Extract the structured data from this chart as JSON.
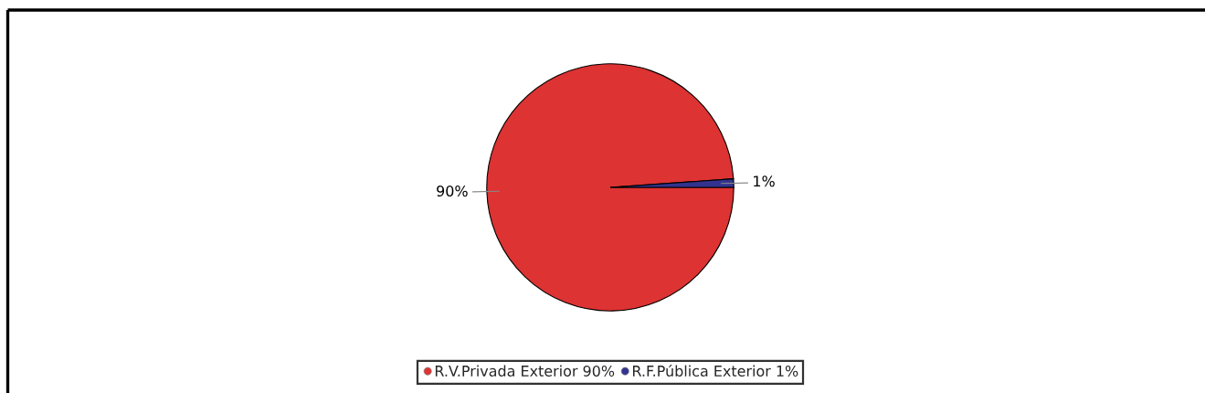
{
  "chart_data": {
    "type": "pie",
    "categories": [
      "R.V.Privada Exterior 90%",
      "R.F.Pública Exterior 1%"
    ],
    "values": [
      90,
      1
    ],
    "colors": [
      "#dd3333",
      "#33338f"
    ],
    "value_labels": [
      "90%",
      "1%"
    ],
    "legend": "bottom"
  }
}
